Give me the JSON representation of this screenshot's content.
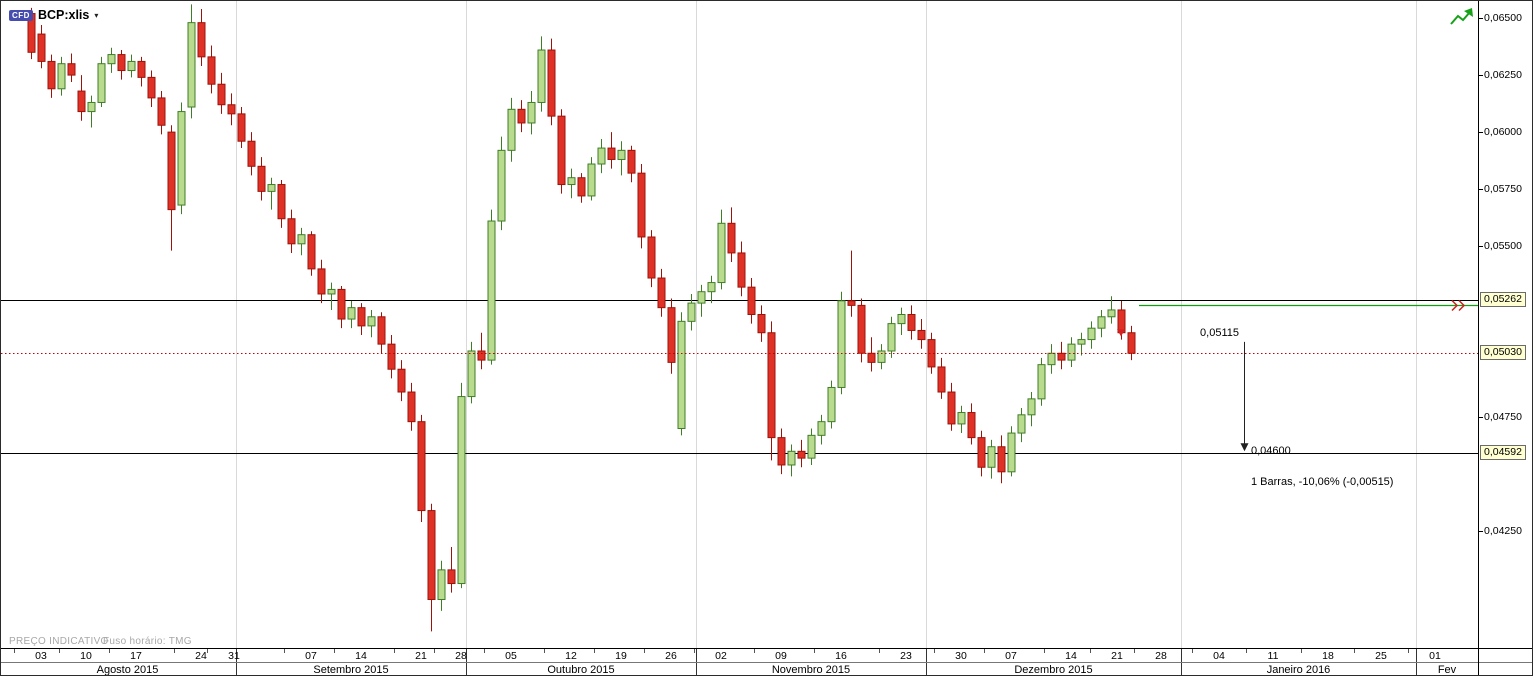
{
  "header": {
    "badge": "CFD",
    "symbol": "BCP:xlis",
    "dropdown_icon": "▾"
  },
  "footer": {
    "indicative_label": "PREÇO INDICATIVO",
    "timezone_label": "Fuso horário: TMG"
  },
  "colors": {
    "up_fill": "#b9db8d",
    "up_stroke": "#3f7d27",
    "down_fill": "#e03126",
    "down_stroke": "#9c1309",
    "grid_line": "#d9d9d9",
    "axis_line": "#000000",
    "tag_bg": "#ffffd2",
    "tag_border": "#6b6b6b",
    "last_price_red": "#c40000",
    "order_green": "#12a012",
    "icon_green": "#18a018",
    "marker_red": "#d42222",
    "badge_bg": "#474db0"
  },
  "chart_data": {
    "type": "candlestick",
    "symbol": "BCP:xlis",
    "timeframe": "daily",
    "y_range": [
      0.04,
      0.0657
    ],
    "price_ticks": [
      {
        "label": "0,06500",
        "value": 0.065
      },
      {
        "label": "0,06250",
        "value": 0.0625
      },
      {
        "label": "0,06000",
        "value": 0.06
      },
      {
        "label": "0,05750",
        "value": 0.0575
      },
      {
        "label": "0,05500",
        "value": 0.055
      },
      {
        "label": "0,04750",
        "value": 0.0475
      },
      {
        "label": "0,04250",
        "value": 0.0425
      }
    ],
    "months": [
      {
        "label": "Agosto 2015",
        "from": -1.2,
        "to": 20.5
      },
      {
        "label": "Setembro 2015",
        "from": 20.5,
        "to": 43.5
      },
      {
        "label": "Outubro 2015",
        "from": 43.5,
        "to": 66.5
      },
      {
        "label": "Novembro 2015",
        "from": 66.5,
        "to": 89.5
      },
      {
        "label": "Dezembro 2015",
        "from": 89.5,
        "to": 115
      },
      {
        "label": "Janeiro 2016",
        "from": 115,
        "to": 138.5
      },
      {
        "label": "Fev",
        "from": 138.5,
        "to": 144.7
      }
    ],
    "weeks": [
      {
        "label": "03",
        "i": 1
      },
      {
        "label": "10",
        "i": 5.5
      },
      {
        "label": "17",
        "i": 10.5
      },
      {
        "label": "24",
        "i": 17
      },
      {
        "label": "31",
        "i": 20.3
      },
      {
        "label": "07",
        "i": 28
      },
      {
        "label": "14",
        "i": 33
      },
      {
        "label": "21",
        "i": 39
      },
      {
        "label": "28",
        "i": 43
      },
      {
        "label": "05",
        "i": 48
      },
      {
        "label": "12",
        "i": 54
      },
      {
        "label": "19",
        "i": 59
      },
      {
        "label": "26",
        "i": 64
      },
      {
        "label": "02",
        "i": 69
      },
      {
        "label": "09",
        "i": 75
      },
      {
        "label": "16",
        "i": 81
      },
      {
        "label": "23",
        "i": 87.5
      },
      {
        "label": "30",
        "i": 93
      },
      {
        "label": "07",
        "i": 98
      },
      {
        "label": "14",
        "i": 104
      },
      {
        "label": "21",
        "i": 108.6
      },
      {
        "label": "28",
        "i": 113
      },
      {
        "label": "04",
        "i": 118.8
      },
      {
        "label": "11",
        "i": 124.2
      },
      {
        "label": "18",
        "i": 129.7
      },
      {
        "label": "25",
        "i": 135
      },
      {
        "label": "01",
        "i": 140.4
      }
    ],
    "lines": [
      {
        "name": "resistance",
        "price": 0.05262,
        "style": "solid",
        "color": "#000000",
        "tag": "0,05262",
        "span": "full"
      },
      {
        "name": "support",
        "price": 0.04592,
        "style": "solid",
        "color": "#000000",
        "tag": "0,04592",
        "span": "full"
      },
      {
        "name": "last-price",
        "price": 0.0503,
        "style": "dotted",
        "color": "#c40000",
        "tag": "0,05030",
        "span": "full"
      },
      {
        "name": "order-line",
        "price": 0.05242,
        "style": "solid",
        "color": "#12a012",
        "span": "right",
        "from_index": 110.8
      }
    ],
    "marker": {
      "type": "sell",
      "shape": "triangle-down",
      "index": 109,
      "y_price": 0.05135,
      "color": "#d42222"
    },
    "measure": {
      "from_label": "0,05115",
      "from_value": 0.05115,
      "to_label": "0,04600",
      "to_value": 0.046,
      "bars": 1,
      "summary": "1 Barras, -10,06% (-0,00515)",
      "at_index": 121.3
    },
    "candles": [
      [
        0.0652,
        0.06545,
        0.0632,
        0.0635
      ],
      [
        0.0643,
        0.0647,
        0.0628,
        0.0631
      ],
      [
        0.0631,
        0.0634,
        0.0615,
        0.0619
      ],
      [
        0.0619,
        0.0633,
        0.0616,
        0.063
      ],
      [
        0.063,
        0.06345,
        0.0622,
        0.0625
      ],
      [
        0.0618,
        0.0625,
        0.0605,
        0.0609
      ],
      [
        0.0609,
        0.0616,
        0.0602,
        0.0613
      ],
      [
        0.0613,
        0.0633,
        0.0611,
        0.063
      ],
      [
        0.063,
        0.0637,
        0.0626,
        0.0634
      ],
      [
        0.0634,
        0.0636,
        0.0623,
        0.0627
      ],
      [
        0.0627,
        0.0634,
        0.0624,
        0.0631
      ],
      [
        0.0631,
        0.0633,
        0.062,
        0.0624
      ],
      [
        0.0624,
        0.0627,
        0.0611,
        0.0615
      ],
      [
        0.0615,
        0.0618,
        0.0599,
        0.0603
      ],
      [
        0.06,
        0.0603,
        0.0548,
        0.0566
      ],
      [
        0.0568,
        0.0613,
        0.0564,
        0.0609
      ],
      [
        0.0611,
        0.0656,
        0.0606,
        0.0648
      ],
      [
        0.0648,
        0.0654,
        0.0629,
        0.0633
      ],
      [
        0.0633,
        0.0638,
        0.0617,
        0.0621
      ],
      [
        0.0621,
        0.0626,
        0.0608,
        0.0612
      ],
      [
        0.0612,
        0.0617,
        0.0603,
        0.0608
      ],
      [
        0.0608,
        0.0611,
        0.0593,
        0.0596
      ],
      [
        0.0596,
        0.06,
        0.0581,
        0.0585
      ],
      [
        0.0585,
        0.0589,
        0.057,
        0.0574
      ],
      [
        0.0574,
        0.058,
        0.0566,
        0.0577
      ],
      [
        0.0577,
        0.0579,
        0.0558,
        0.0562
      ],
      [
        0.0562,
        0.0566,
        0.0547,
        0.0551
      ],
      [
        0.0551,
        0.0558,
        0.0546,
        0.0555
      ],
      [
        0.0555,
        0.05565,
        0.0537,
        0.054
      ],
      [
        0.054,
        0.0544,
        0.0525,
        0.0529
      ],
      [
        0.0529,
        0.0534,
        0.0522,
        0.0531
      ],
      [
        0.0531,
        0.05325,
        0.0514,
        0.0518
      ],
      [
        0.0518,
        0.0526,
        0.0514,
        0.0523
      ],
      [
        0.0523,
        0.0525,
        0.0511,
        0.0515
      ],
      [
        0.0515,
        0.0522,
        0.051,
        0.0519
      ],
      [
        0.0519,
        0.0521,
        0.0503,
        0.0507
      ],
      [
        0.0507,
        0.0511,
        0.0492,
        0.0496
      ],
      [
        0.0496,
        0.05,
        0.0482,
        0.0486
      ],
      [
        0.0486,
        0.049,
        0.0469,
        0.0473
      ],
      [
        0.0473,
        0.0476,
        0.0429,
        0.0434
      ],
      [
        0.0434,
        0.0437,
        0.0381,
        0.0395
      ],
      [
        0.0395,
        0.0412,
        0.039,
        0.0408
      ],
      [
        0.0408,
        0.0418,
        0.0398,
        0.0402
      ],
      [
        0.0402,
        0.049,
        0.04,
        0.0484
      ],
      [
        0.0484,
        0.0508,
        0.0481,
        0.0504
      ],
      [
        0.0504,
        0.0512,
        0.0496,
        0.05
      ],
      [
        0.05,
        0.0566,
        0.0498,
        0.0561
      ],
      [
        0.0561,
        0.0598,
        0.0557,
        0.0592
      ],
      [
        0.0592,
        0.0615,
        0.0587,
        0.061
      ],
      [
        0.061,
        0.0614,
        0.06,
        0.0604
      ],
      [
        0.0604,
        0.0618,
        0.0599,
        0.0613
      ],
      [
        0.0613,
        0.0642,
        0.0609,
        0.0636
      ],
      [
        0.0636,
        0.0641,
        0.0603,
        0.0607
      ],
      [
        0.0607,
        0.061,
        0.0573,
        0.0577
      ],
      [
        0.0577,
        0.0584,
        0.0571,
        0.058
      ],
      [
        0.058,
        0.0582,
        0.0569,
        0.0572
      ],
      [
        0.0572,
        0.0589,
        0.057,
        0.0586
      ],
      [
        0.0586,
        0.0597,
        0.0582,
        0.0593
      ],
      [
        0.0593,
        0.06,
        0.0584,
        0.0588
      ],
      [
        0.0588,
        0.0596,
        0.0581,
        0.0592
      ],
      [
        0.0592,
        0.0594,
        0.0578,
        0.0582
      ],
      [
        0.0582,
        0.0586,
        0.0549,
        0.0554
      ],
      [
        0.0554,
        0.0557,
        0.0532,
        0.0536
      ],
      [
        0.0536,
        0.054,
        0.0519,
        0.0523
      ],
      [
        0.0523,
        0.0527,
        0.0494,
        0.0499
      ],
      [
        0.047,
        0.0521,
        0.0467,
        0.0517
      ],
      [
        0.0517,
        0.0529,
        0.0513,
        0.0525
      ],
      [
        0.0525,
        0.0533,
        0.0519,
        0.053
      ],
      [
        0.053,
        0.0537,
        0.0525,
        0.0534
      ],
      [
        0.0534,
        0.0566,
        0.0531,
        0.056
      ],
      [
        0.056,
        0.0567,
        0.0543,
        0.0547
      ],
      [
        0.0547,
        0.0552,
        0.0528,
        0.0532
      ],
      [
        0.0532,
        0.0536,
        0.0516,
        0.052
      ],
      [
        0.052,
        0.0524,
        0.0508,
        0.0512
      ],
      [
        0.0512,
        0.0517,
        0.0456,
        0.0466
      ],
      [
        0.0466,
        0.047,
        0.045,
        0.0454
      ],
      [
        0.0454,
        0.0463,
        0.0449,
        0.046
      ],
      [
        0.046,
        0.0465,
        0.0453,
        0.0457
      ],
      [
        0.0457,
        0.047,
        0.0454,
        0.0467
      ],
      [
        0.0467,
        0.0476,
        0.0463,
        0.0473
      ],
      [
        0.0473,
        0.0491,
        0.047,
        0.0488
      ],
      [
        0.0488,
        0.053,
        0.0485,
        0.0526
      ],
      [
        0.0526,
        0.0548,
        0.0519,
        0.0524
      ],
      [
        0.0524,
        0.0527,
        0.0499,
        0.0503
      ],
      [
        0.0503,
        0.051,
        0.0495,
        0.0499
      ],
      [
        0.0499,
        0.0507,
        0.0496,
        0.0504
      ],
      [
        0.0504,
        0.0519,
        0.0501,
        0.0516
      ],
      [
        0.0516,
        0.0523,
        0.0511,
        0.052
      ],
      [
        0.052,
        0.0524,
        0.0509,
        0.0513
      ],
      [
        0.0513,
        0.0518,
        0.0505,
        0.0509
      ],
      [
        0.0509,
        0.0512,
        0.0494,
        0.0497
      ],
      [
        0.0497,
        0.0501,
        0.0483,
        0.0486
      ],
      [
        0.0486,
        0.049,
        0.0469,
        0.0472
      ],
      [
        0.0472,
        0.048,
        0.0468,
        0.0477
      ],
      [
        0.0477,
        0.0481,
        0.0463,
        0.0466
      ],
      [
        0.0466,
        0.0469,
        0.0449,
        0.0453
      ],
      [
        0.0453,
        0.0465,
        0.0448,
        0.0462
      ],
      [
        0.0462,
        0.0467,
        0.0446,
        0.0451
      ],
      [
        0.0451,
        0.0471,
        0.0449,
        0.0468
      ],
      [
        0.0468,
        0.0479,
        0.0464,
        0.0476
      ],
      [
        0.0476,
        0.0486,
        0.0471,
        0.0483
      ],
      [
        0.0483,
        0.0501,
        0.048,
        0.0498
      ],
      [
        0.0498,
        0.0507,
        0.0494,
        0.0503
      ],
      [
        0.0503,
        0.0508,
        0.0496,
        0.05
      ],
      [
        0.05,
        0.051,
        0.0497,
        0.0507
      ],
      [
        0.0507,
        0.0512,
        0.0502,
        0.0509
      ],
      [
        0.0509,
        0.0517,
        0.0505,
        0.0514
      ],
      [
        0.0514,
        0.0522,
        0.051,
        0.0519
      ],
      [
        0.0519,
        0.0528,
        0.0516,
        0.0522
      ],
      [
        0.0522,
        0.0526,
        0.0509,
        0.0512
      ],
      [
        0.0512,
        0.0515,
        0.05,
        0.0503
      ]
    ]
  }
}
